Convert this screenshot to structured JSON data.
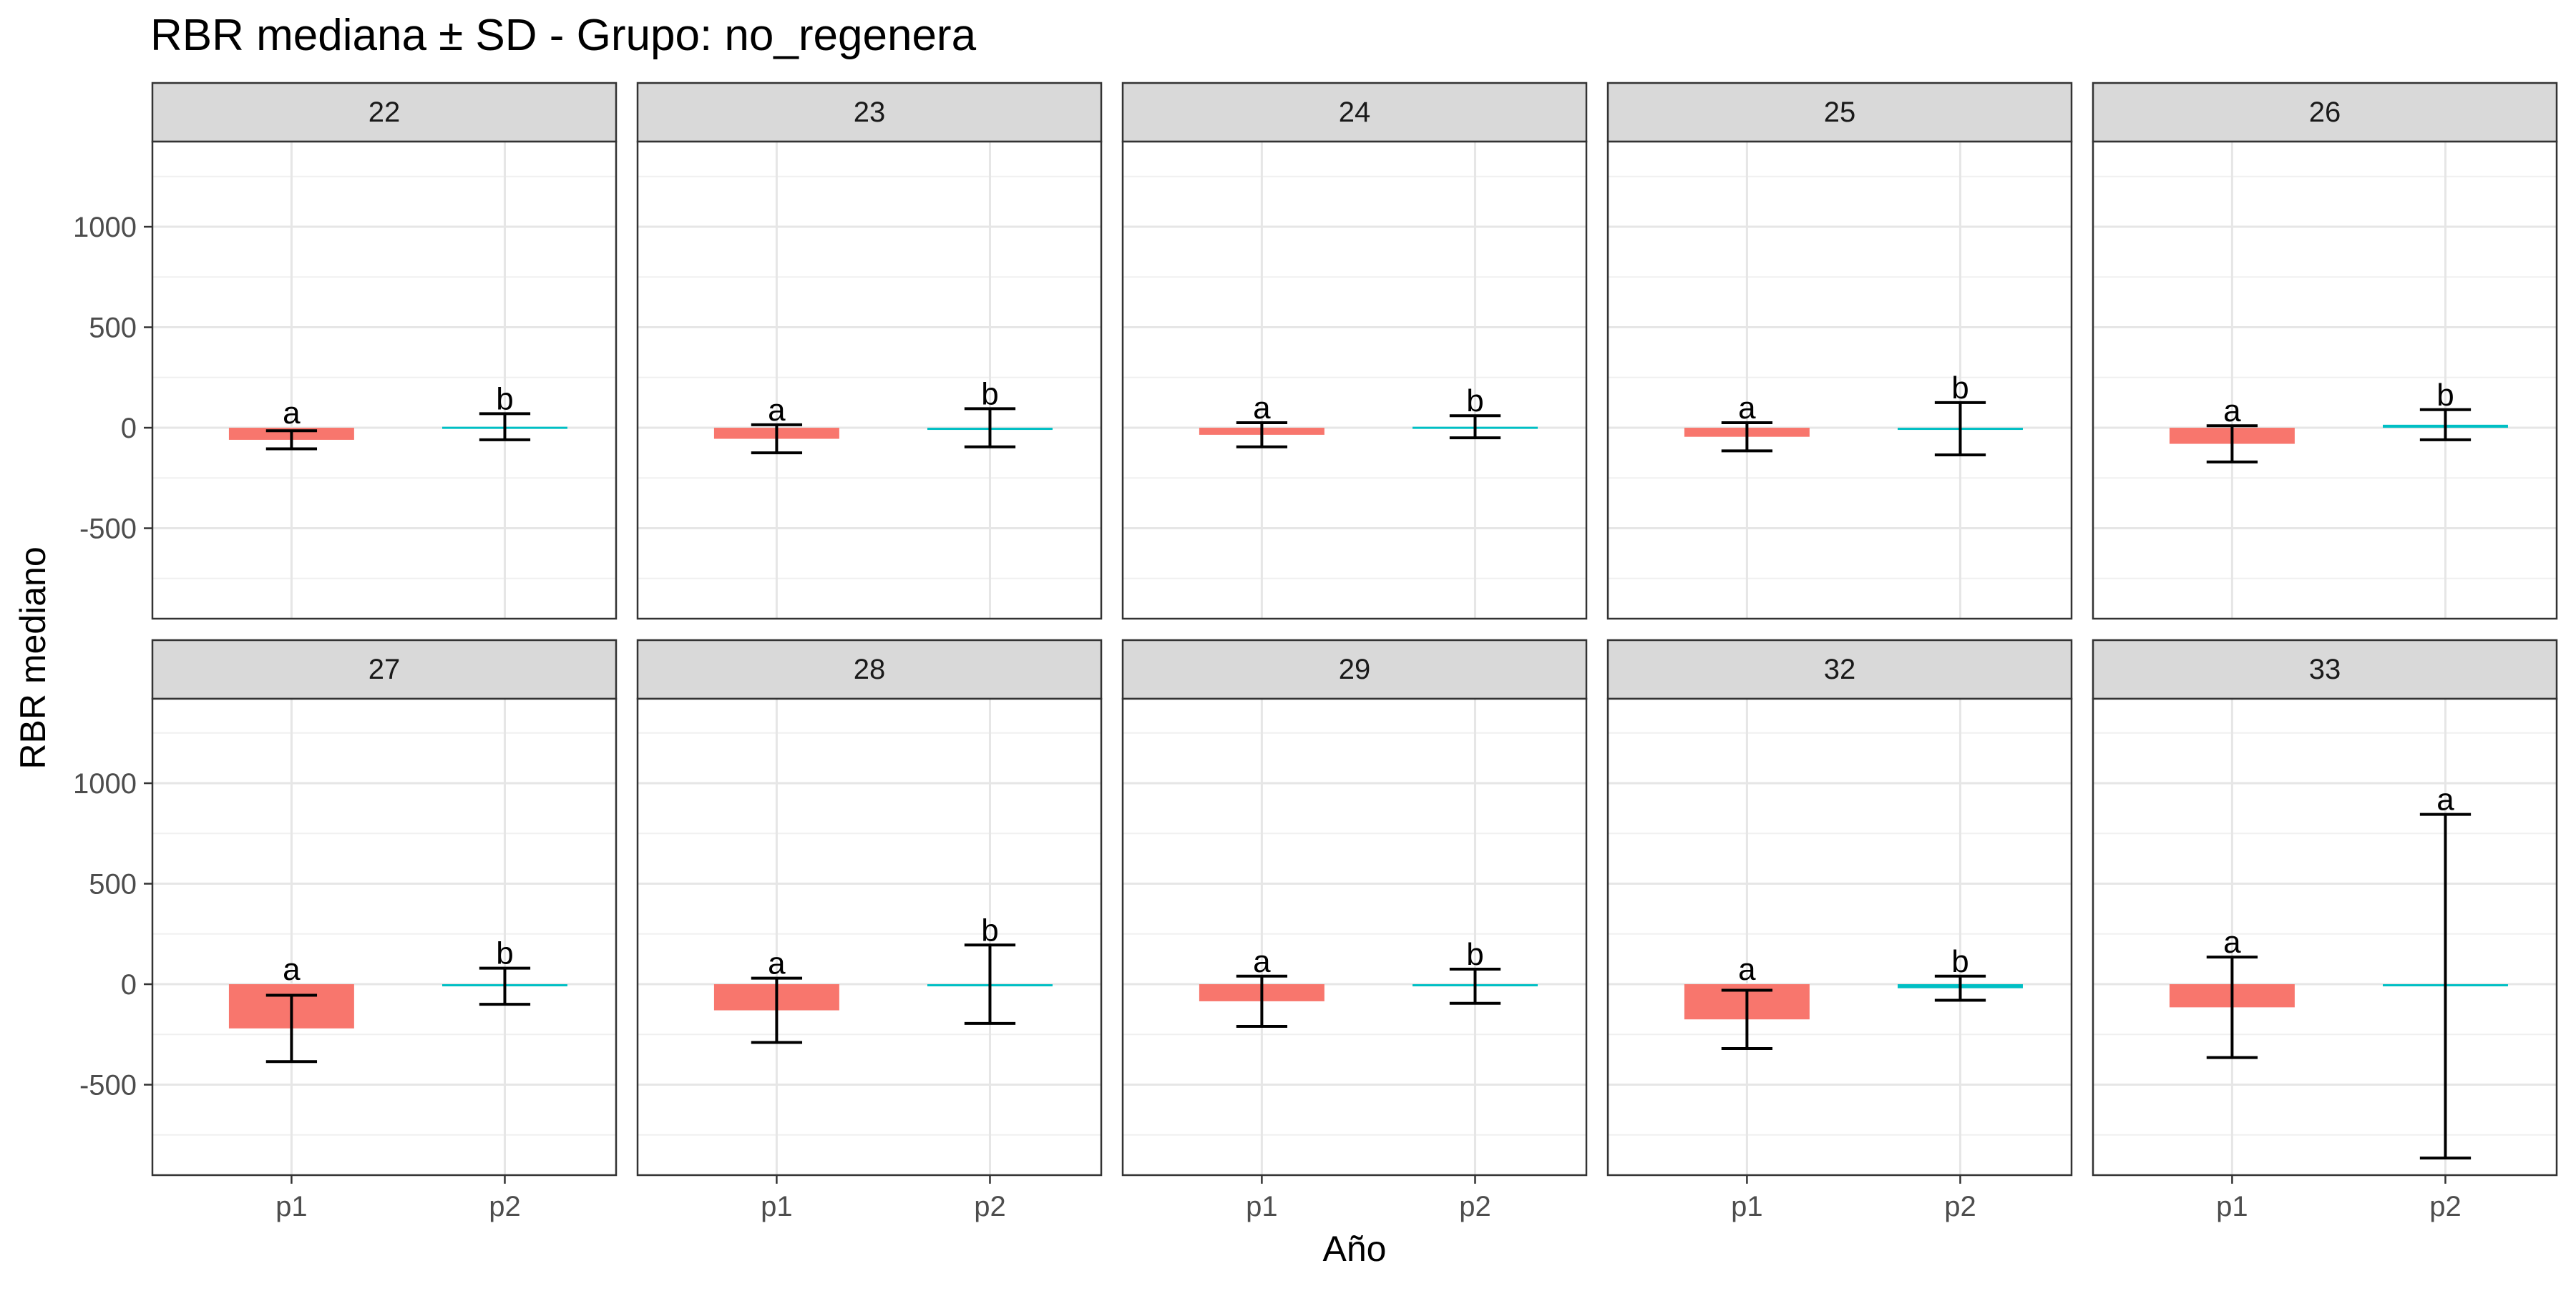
{
  "chart_data": {
    "type": "bar",
    "title": "RBR mediana ± SD - Grupo: no_regenera",
    "xlabel": "Año",
    "ylabel": "RBR mediano",
    "categories": [
      "p1",
      "p2"
    ],
    "ylim": [
      -950,
      1400
    ],
    "yticks": [
      -500,
      0,
      500,
      1000
    ],
    "ytick_labels": [
      "-500",
      "0",
      "500",
      "1000"
    ],
    "grid": true,
    "legend": "none",
    "colors": {
      "p1": "#F8766D",
      "p2": "#00BFC4"
    },
    "panels": [
      {
        "facet": "22",
        "values": [
          -60,
          5
        ],
        "sd": [
          45,
          65
        ],
        "letters": [
          "a",
          "b"
        ]
      },
      {
        "facet": "23",
        "values": [
          -55,
          0
        ],
        "sd": [
          70,
          95
        ],
        "letters": [
          "a",
          "b"
        ]
      },
      {
        "facet": "24",
        "values": [
          -35,
          5
        ],
        "sd": [
          60,
          55
        ],
        "letters": [
          "a",
          "b"
        ]
      },
      {
        "facet": "25",
        "values": [
          -45,
          -5
        ],
        "sd": [
          70,
          130
        ],
        "letters": [
          "a",
          "b"
        ]
      },
      {
        "facet": "26",
        "values": [
          -80,
          15
        ],
        "sd": [
          90,
          75
        ],
        "letters": [
          "a",
          "b"
        ]
      },
      {
        "facet": "27",
        "values": [
          -220,
          -10
        ],
        "sd": [
          165,
          90
        ],
        "letters": [
          "a",
          "b"
        ]
      },
      {
        "facet": "28",
        "values": [
          -130,
          0
        ],
        "sd": [
          160,
          195
        ],
        "letters": [
          "a",
          "b"
        ]
      },
      {
        "facet": "29",
        "values": [
          -85,
          -10
        ],
        "sd": [
          125,
          85
        ],
        "letters": [
          "a",
          "b"
        ]
      },
      {
        "facet": "32",
        "values": [
          -175,
          -20
        ],
        "sd": [
          145,
          60
        ],
        "letters": [
          "a",
          "b"
        ]
      },
      {
        "facet": "33",
        "values": [
          -115,
          -10
        ],
        "sd": [
          250,
          855
        ],
        "letters": [
          "a",
          "a"
        ]
      }
    ]
  }
}
